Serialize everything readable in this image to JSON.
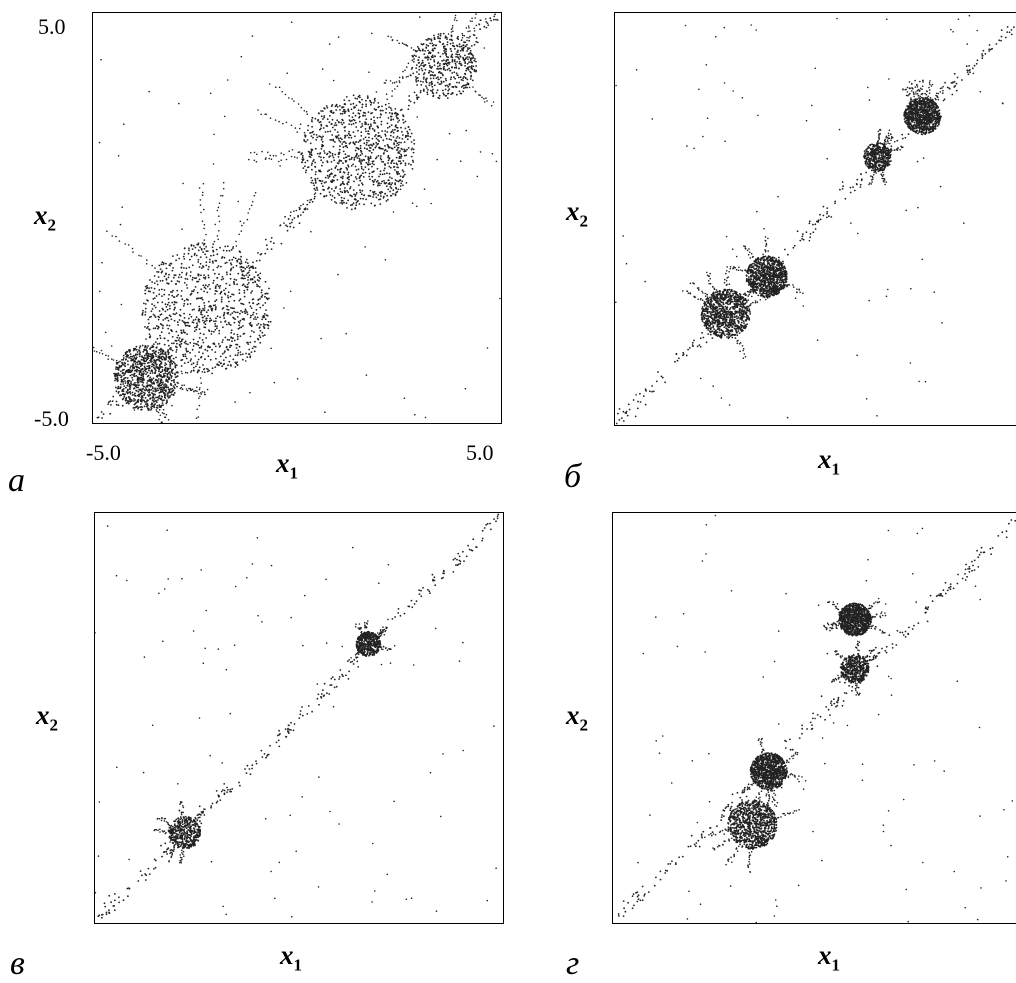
{
  "figure": {
    "panels": [
      {
        "letter": "а",
        "x_label": "x",
        "x_sub": "1",
        "y_label": "x",
        "y_sub": "2",
        "x_ticks": [
          "-5.0",
          "5.0"
        ],
        "y_ticks": [
          "5.0",
          "-5.0"
        ]
      },
      {
        "letter": "б",
        "x_label": "x",
        "x_sub": "1",
        "y_label": "x",
        "y_sub": "2"
      },
      {
        "letter": "в",
        "x_label": "x",
        "x_sub": "1",
        "y_label": "x",
        "y_sub": "2"
      },
      {
        "letter": "г",
        "x_label": "x",
        "x_sub": "1",
        "y_label": "x",
        "y_sub": "2"
      }
    ]
  },
  "chart_data": [
    {
      "type": "scatter",
      "xlim": [
        -5.0,
        5.0
      ],
      "ylim": [
        -5.0,
        5.0
      ],
      "grid": false,
      "color": "#222222",
      "clusters": [
        {
          "cx": -2.2,
          "cy": -2.2,
          "r": 1.6,
          "density": "high"
        },
        {
          "cx": 1.5,
          "cy": 1.6,
          "r": 1.4,
          "density": "high"
        },
        {
          "cx": -3.7,
          "cy": -3.9,
          "r": 0.8,
          "density": "high"
        },
        {
          "cx": 3.6,
          "cy": 3.7,
          "r": 0.8,
          "density": "medium"
        }
      ]
    },
    {
      "type": "scatter",
      "grid": false,
      "color": "#222222",
      "clusters": [
        {
          "cx": -2.3,
          "cy": -2.3,
          "r": 0.6,
          "density": "high"
        },
        {
          "cx": -1.3,
          "cy": -1.4,
          "r": 0.5,
          "density": "high"
        },
        {
          "cx": 2.5,
          "cy": 2.5,
          "r": 0.45,
          "density": "high"
        },
        {
          "cx": 1.4,
          "cy": 1.5,
          "r": 0.35,
          "density": "medium"
        }
      ]
    },
    {
      "type": "scatter",
      "grid": false,
      "color": "#222222",
      "clusters": [
        {
          "cx": -2.8,
          "cy": -2.8,
          "r": 0.4,
          "density": "medium"
        },
        {
          "cx": 1.7,
          "cy": 1.8,
          "r": 0.3,
          "density": "medium"
        }
      ]
    },
    {
      "type": "scatter",
      "grid": false,
      "color": "#222222",
      "clusters": [
        {
          "cx": -1.6,
          "cy": -2.6,
          "r": 0.6,
          "density": "high"
        },
        {
          "cx": -1.2,
          "cy": -1.3,
          "r": 0.45,
          "density": "high"
        },
        {
          "cx": 0.9,
          "cy": 2.4,
          "r": 0.4,
          "density": "high"
        },
        {
          "cx": 0.9,
          "cy": 1.2,
          "r": 0.35,
          "density": "medium"
        }
      ]
    }
  ]
}
